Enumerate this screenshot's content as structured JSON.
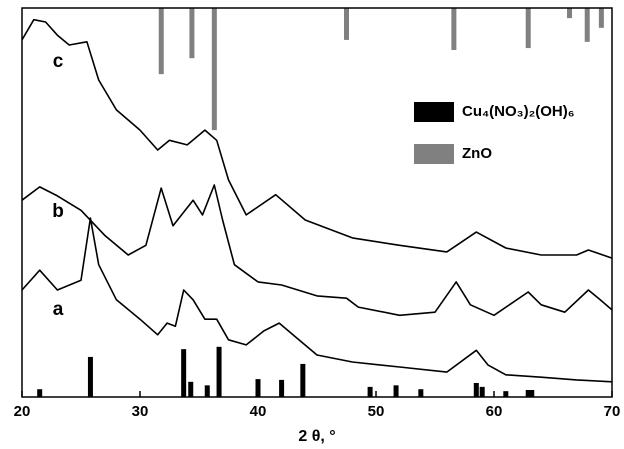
{
  "chart_data": {
    "type": "line",
    "xlabel": "2 θ, °",
    "xlim": [
      20,
      70
    ],
    "xticks": [
      20,
      30,
      40,
      50,
      60,
      70
    ],
    "ylim": [
      0,
      100
    ],
    "series": [
      {
        "name": "a",
        "type": "line",
        "color": "#000000",
        "x": [
          20,
          21.5,
          23,
          25,
          25.8,
          26.5,
          28,
          30,
          31.5,
          32.3,
          33,
          33.7,
          34.5,
          35.5,
          36.5,
          37.5,
          39,
          40.5,
          41.8,
          43,
          45,
          48,
          52,
          56,
          58.5,
          59.5,
          61,
          64,
          67,
          70
        ],
        "values": [
          27.5,
          32.6,
          27.5,
          30,
          46,
          34,
          25,
          20,
          16,
          19,
          18.2,
          27.5,
          25,
          20,
          20,
          14.7,
          13.4,
          17,
          19,
          15.9,
          10.8,
          9,
          7.7,
          6.4,
          12,
          8.2,
          5.7,
          5.1,
          4.4,
          3.9
        ]
      },
      {
        "name": "b",
        "type": "line",
        "color": "#000000",
        "x": [
          20,
          21.5,
          23,
          25,
          27,
          29,
          30.5,
          31.8,
          32.8,
          34.5,
          35.3,
          36.3,
          37,
          38,
          40,
          42,
          45,
          47.5,
          48.5,
          52,
          55,
          56.8,
          58,
          60,
          62.9,
          64,
          66,
          68,
          69,
          70
        ],
        "values": [
          50.6,
          54,
          51.7,
          48,
          41.6,
          36.5,
          39,
          53.7,
          44,
          50.6,
          46.8,
          54.5,
          45.5,
          34,
          29.6,
          28.8,
          26,
          25.4,
          23.1,
          21,
          21.8,
          29.6,
          23.7,
          21,
          27,
          23.7,
          21.8,
          27.5,
          25,
          22.4
        ]
      },
      {
        "name": "c",
        "type": "line",
        "color": "#000000",
        "x": [
          20,
          21,
          22,
          23,
          24,
          25.5,
          26.5,
          28,
          30,
          31.5,
          32.5,
          34,
          35.5,
          36.5,
          37.5,
          39,
          41.5,
          44,
          48,
          52,
          56,
          58.5,
          61,
          64,
          67,
          68,
          70
        ],
        "values": [
          91.8,
          97,
          96.4,
          93,
          90.5,
          91.3,
          81.5,
          73.8,
          68.6,
          63.5,
          66,
          64.8,
          68.6,
          66,
          55.8,
          46.8,
          52,
          45.5,
          40.9,
          39,
          37.3,
          42.4,
          38.3,
          36.5,
          36.5,
          37.8,
          35.7
        ]
      },
      {
        "name": "Cu₄(NO₃)₂(OH)₆",
        "type": "stick",
        "base": "bottom",
        "color": "#000000",
        "x": [
          21.5,
          25.8,
          33.7,
          34.3,
          35.7,
          36.7,
          40,
          42,
          43.8,
          49.5,
          51.7,
          53.8,
          58.5,
          59,
          61,
          62.9,
          63.2
        ],
        "values": [
          2,
          10.3,
          12.3,
          3.9,
          3,
          12.9,
          4.6,
          4.4,
          8.5,
          2.6,
          3,
          2,
          3.6,
          2.6,
          1.5,
          1.8,
          1.8
        ]
      },
      {
        "name": "ZnO",
        "type": "stick",
        "base": "top",
        "color": "#808080",
        "x": [
          31.8,
          34.4,
          36.3,
          47.5,
          56.6,
          62.9,
          66.4,
          67.9,
          69.1
        ],
        "values": [
          17,
          12.9,
          31.4,
          8.2,
          10.8,
          10.3,
          2.6,
          8.7,
          5.1
        ]
      }
    ]
  }
}
